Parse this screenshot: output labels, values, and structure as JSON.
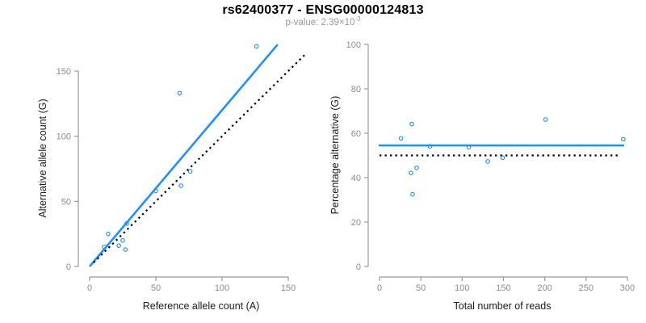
{
  "header": {
    "title": "rs62400377 - ENSG00000124813",
    "p_value_base": "p-value: 2.39×10",
    "p_value_exponent": "-3"
  },
  "colors": {
    "point_blue": "#1E90FF",
    "line_blue": "#1E90FF",
    "dotted_black": "#000000",
    "axis_gray": "#9a9a9a",
    "tick_label_gray": "#8c8c8c",
    "subtitle_gray": "#999999"
  },
  "chart_data": [
    {
      "id": "allele-count-scatter",
      "type": "scatter",
      "xlabel": "Reference allele count (A)",
      "ylabel": "Alternative allele count (G)",
      "xlim": [
        0,
        150
      ],
      "ylim": [
        0,
        150
      ],
      "xticks": [
        0,
        50,
        100,
        150
      ],
      "yticks": [
        0,
        50,
        100,
        150
      ],
      "grid": false,
      "legend": "none",
      "marker": "open-circle",
      "points": [
        [
          11,
          15
        ],
        [
          14,
          25
        ],
        [
          22,
          16
        ],
        [
          25,
          20
        ],
        [
          27,
          13
        ],
        [
          28,
          33
        ],
        [
          50,
          58
        ],
        [
          69,
          62
        ],
        [
          76,
          73
        ],
        [
          68,
          133
        ],
        [
          126,
          169
        ]
      ],
      "regression_line": {
        "style": "solid",
        "slope": 1.2,
        "intercept": 0,
        "x_range": [
          0.4,
          141.5
        ]
      },
      "identity_line": {
        "style": "dotted",
        "slope": 1,
        "intercept": 0,
        "x_range": [
          3,
          164
        ]
      }
    },
    {
      "id": "percentage-vs-reads-scatter",
      "type": "scatter",
      "xlabel": "Total number of reads",
      "ylabel": "Percentage alternative (G)",
      "xlim": [
        0,
        300
      ],
      "ylim": [
        0,
        100
      ],
      "xticks": [
        0,
        50,
        100,
        150,
        200,
        250,
        300
      ],
      "yticks": [
        0,
        20,
        40,
        60,
        80,
        100
      ],
      "grid": false,
      "legend": "none",
      "marker": "open-circle",
      "points": [
        [
          26,
          57.7
        ],
        [
          39,
          64.1
        ],
        [
          38,
          42.1
        ],
        [
          45,
          44.4
        ],
        [
          40,
          32.5
        ],
        [
          61,
          54.1
        ],
        [
          108,
          53.7
        ],
        [
          131,
          47.3
        ],
        [
          149,
          49.0
        ],
        [
          201,
          66.2
        ],
        [
          295,
          57.3
        ]
      ],
      "mean_line": {
        "style": "solid",
        "value": 54.5,
        "x_range": [
          0,
          295
        ]
      },
      "reference_line": {
        "style": "dotted",
        "value": 50,
        "x_range": [
          0,
          291
        ]
      }
    }
  ]
}
